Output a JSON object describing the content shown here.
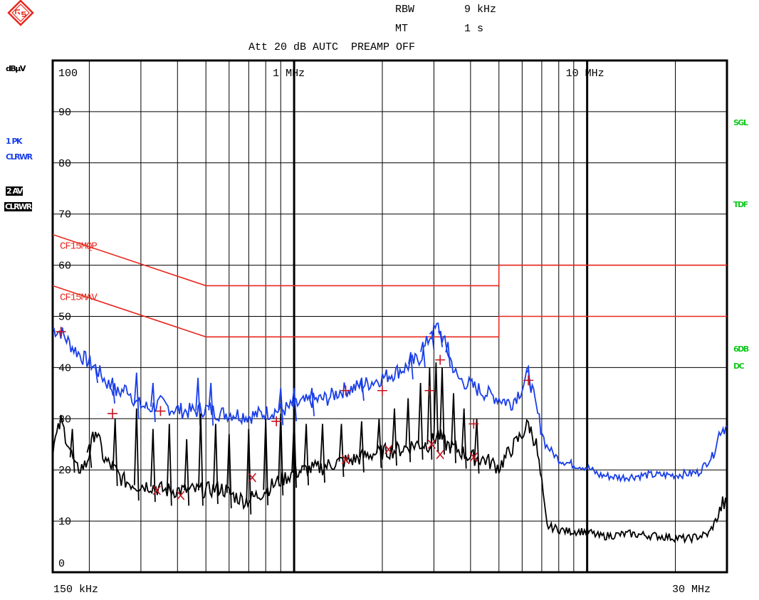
{
  "header": {
    "rbw_label": "RBW",
    "rbw_value": "9 kHz",
    "mt_label": "MT",
    "mt_value": "1 s",
    "att_line": "Att 20 dB AUTC  PREAMP OFF"
  },
  "sidebar": {
    "unit": "dBµV",
    "trace1_line1": "1 PK",
    "trace1_line2": "CLRWR",
    "trace2_line1": "2 AV",
    "trace2_line2": "CLRWR"
  },
  "right_labels": {
    "sgl": "SGL",
    "tdf": "TDF",
    "db6": "6DB",
    "dc": "DC"
  },
  "colors": {
    "peak": "#1a3fe8",
    "average": "#000000",
    "limits": "#e8281e",
    "markers": "#c4141e",
    "status": "#12c81e"
  },
  "chart_data": {
    "type": "line",
    "x_scale": "log",
    "x_range_hz": [
      150000,
      30000000
    ],
    "x_start_label": "150 kHz",
    "x_stop_label": "30 MHz",
    "x_grid_labels": [
      {
        "hz": 1000000,
        "label": "1 MHz"
      },
      {
        "hz": 10000000,
        "label": "10 MHz"
      }
    ],
    "ylim": [
      0,
      100
    ],
    "y_ticks": [
      0,
      10,
      20,
      30,
      40,
      50,
      60,
      70,
      80,
      90,
      100
    ],
    "ylabel": "dBµV",
    "grid": true,
    "limit_lines": [
      {
        "name": "CF15MQP",
        "points": [
          [
            150000,
            66
          ],
          [
            500000,
            56
          ],
          [
            5000000,
            56
          ],
          [
            5000000,
            60
          ],
          [
            30000000,
            60
          ]
        ]
      },
      {
        "name": "CF15MAV",
        "points": [
          [
            150000,
            56
          ],
          [
            500000,
            46
          ],
          [
            5000000,
            46
          ],
          [
            5000000,
            50
          ],
          [
            30000000,
            50
          ]
        ]
      }
    ],
    "series": [
      {
        "key": "peak",
        "points": [
          [
            150000,
            47.5
          ],
          [
            160000,
            47
          ],
          [
            175000,
            44
          ],
          [
            190000,
            42
          ],
          [
            210000,
            40
          ],
          [
            230000,
            37
          ],
          [
            250000,
            35
          ],
          [
            270000,
            36
          ],
          [
            290000,
            33
          ],
          [
            320000,
            32
          ],
          [
            350000,
            33
          ],
          [
            380000,
            32
          ],
          [
            420000,
            31.5
          ],
          [
            460000,
            31.5
          ],
          [
            500000,
            32
          ],
          [
            560000,
            31
          ],
          [
            620000,
            31
          ],
          [
            700000,
            30.5
          ],
          [
            780000,
            31
          ],
          [
            860000,
            31.5
          ],
          [
            950000,
            32
          ],
          [
            1050000,
            33
          ],
          [
            1150000,
            33.5
          ],
          [
            1300000,
            34
          ],
          [
            1450000,
            35.5
          ],
          [
            1600000,
            36
          ],
          [
            1800000,
            37
          ],
          [
            2000000,
            38
          ],
          [
            2200000,
            39
          ],
          [
            2400000,
            40
          ],
          [
            2700000,
            42
          ],
          [
            2900000,
            46
          ],
          [
            3100000,
            48
          ],
          [
            3300000,
            44
          ],
          [
            3600000,
            38
          ],
          [
            4000000,
            36.5
          ],
          [
            4500000,
            35
          ],
          [
            5000000,
            34
          ],
          [
            5500000,
            33
          ],
          [
            6000000,
            36
          ],
          [
            6300000,
            39
          ],
          [
            6700000,
            32
          ],
          [
            7200000,
            25
          ],
          [
            8000000,
            22
          ],
          [
            9000000,
            21
          ],
          [
            10000000,
            20.5
          ],
          [
            11000000,
            19
          ],
          [
            13000000,
            18.5
          ],
          [
            16000000,
            19
          ],
          [
            20000000,
            19
          ],
          [
            24000000,
            19.5
          ],
          [
            27000000,
            23
          ],
          [
            28500000,
            28
          ],
          [
            30000000,
            28.5
          ]
        ],
        "spikes": [
          {
            "hz": 210000,
            "to": 40
          },
          {
            "hz": 240000,
            "to": 38
          },
          {
            "hz": 290000,
            "to": 39
          },
          {
            "hz": 330000,
            "to": 37
          },
          {
            "hz": 470000,
            "to": 38
          },
          {
            "hz": 520000,
            "to": 37
          },
          {
            "hz": 900000,
            "to": 36
          },
          {
            "hz": 1000000,
            "to": 36
          },
          {
            "hz": 1150000,
            "to": 36
          },
          {
            "hz": 1700000,
            "to": 38
          },
          {
            "hz": 2500000,
            "to": 43
          },
          {
            "hz": 2750000,
            "to": 45
          },
          {
            "hz": 2950000,
            "to": 47
          },
          {
            "hz": 3150000,
            "to": 47
          },
          {
            "hz": 3350000,
            "to": 45
          },
          {
            "hz": 6300000,
            "to": 39.5
          }
        ]
      },
      {
        "key": "average",
        "points": [
          [
            150000,
            24
          ],
          [
            160000,
            29.5
          ],
          [
            170000,
            25
          ],
          [
            180000,
            20
          ],
          [
            195000,
            21
          ],
          [
            210000,
            28
          ],
          [
            225000,
            22
          ],
          [
            240000,
            20.5
          ],
          [
            260000,
            18
          ],
          [
            290000,
            17
          ],
          [
            320000,
            17
          ],
          [
            360000,
            16
          ],
          [
            400000,
            16
          ],
          [
            460000,
            16
          ],
          [
            500000,
            16
          ],
          [
            560000,
            16.5
          ],
          [
            620000,
            15
          ],
          [
            680000,
            14
          ],
          [
            750000,
            15
          ],
          [
            820000,
            16.5
          ],
          [
            900000,
            18
          ],
          [
            1000000,
            19.5
          ],
          [
            1100000,
            20
          ],
          [
            1250000,
            20.5
          ],
          [
            1400000,
            21.5
          ],
          [
            1600000,
            22
          ],
          [
            1800000,
            23
          ],
          [
            2000000,
            23.5
          ],
          [
            2300000,
            24
          ],
          [
            2600000,
            25
          ],
          [
            2900000,
            25
          ],
          [
            3100000,
            27
          ],
          [
            3300000,
            25
          ],
          [
            3600000,
            24
          ],
          [
            4000000,
            22.5
          ],
          [
            4500000,
            22
          ],
          [
            5000000,
            20.5
          ],
          [
            5500000,
            24
          ],
          [
            6000000,
            27
          ],
          [
            6300000,
            29
          ],
          [
            6700000,
            25
          ],
          [
            7000000,
            17
          ],
          [
            7300000,
            9
          ],
          [
            8500000,
            8
          ],
          [
            10000000,
            8
          ],
          [
            11000000,
            7
          ],
          [
            14000000,
            7.5
          ],
          [
            18000000,
            7
          ],
          [
            22000000,
            6.5
          ],
          [
            26000000,
            7.5
          ],
          [
            28000000,
            11
          ],
          [
            29000000,
            13.5
          ],
          [
            30000000,
            13
          ]
        ],
        "spikes": [
          {
            "hz": 175000,
            "to": 28
          },
          {
            "hz": 200000,
            "to": 25
          },
          {
            "hz": 245000,
            "to": 30
          },
          {
            "hz": 290000,
            "to": 32
          },
          {
            "hz": 330000,
            "to": 28
          },
          {
            "hz": 375000,
            "to": 29
          },
          {
            "hz": 430000,
            "to": 26
          },
          {
            "hz": 480000,
            "to": 31
          },
          {
            "hz": 540000,
            "to": 29
          },
          {
            "hz": 600000,
            "to": 27
          },
          {
            "hz": 700000,
            "to": 28
          },
          {
            "hz": 800000,
            "to": 30
          },
          {
            "hz": 900000,
            "to": 31
          },
          {
            "hz": 1000000,
            "to": 30
          },
          {
            "hz": 1100000,
            "to": 29
          },
          {
            "hz": 1250000,
            "to": 29
          },
          {
            "hz": 1450000,
            "to": 29
          },
          {
            "hz": 1700000,
            "to": 29.5
          },
          {
            "hz": 1950000,
            "to": 30
          },
          {
            "hz": 2200000,
            "to": 32
          },
          {
            "hz": 2450000,
            "to": 34
          },
          {
            "hz": 2700000,
            "to": 37
          },
          {
            "hz": 2900000,
            "to": 40
          },
          {
            "hz": 3050000,
            "to": 41
          },
          {
            "hz": 3200000,
            "to": 40
          },
          {
            "hz": 3500000,
            "to": 35
          },
          {
            "hz": 3800000,
            "to": 32
          },
          {
            "hz": 4200000,
            "to": 30
          }
        ]
      }
    ],
    "qp_markers": [
      [
        160000,
        47
      ],
      [
        240000,
        31
      ],
      [
        350000,
        31.5
      ],
      [
        870000,
        29.5
      ],
      [
        1500000,
        35.5
      ],
      [
        2000000,
        35.5
      ],
      [
        2900000,
        35.5
      ],
      [
        3150000,
        41.5
      ],
      [
        4100000,
        29
      ],
      [
        6300000,
        37.5
      ]
    ],
    "av_markers": [
      [
        340000,
        16
      ],
      [
        410000,
        15
      ],
      [
        720000,
        18.5
      ],
      [
        1500000,
        22
      ],
      [
        2100000,
        24
      ],
      [
        2950000,
        25
      ],
      [
        3150000,
        23
      ],
      [
        4100000,
        22.5
      ]
    ]
  }
}
